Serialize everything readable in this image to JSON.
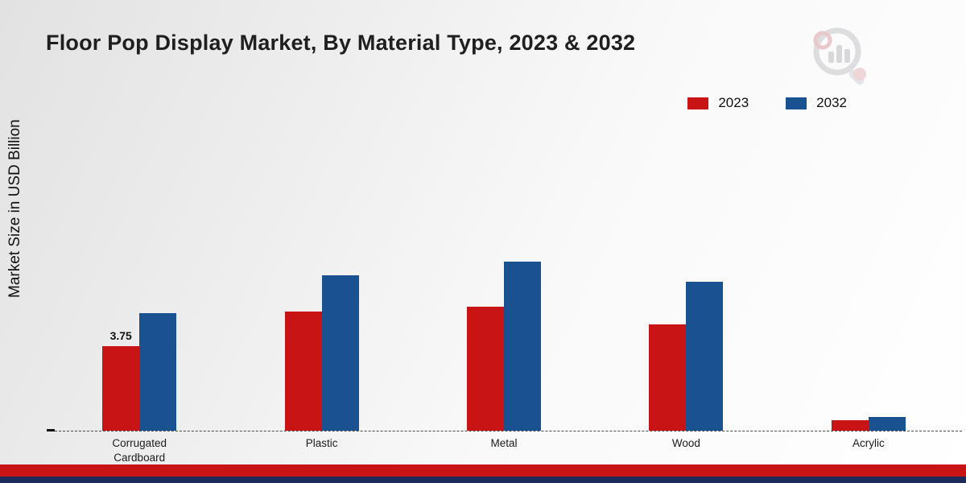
{
  "title": "Floor Pop Display Market, By Material Type, 2023 & 2032",
  "y_axis_label": "Market Size in USD Billion",
  "legend": [
    {
      "label": "2023",
      "color": "#c81414"
    },
    {
      "label": "2032",
      "color": "#1a5190"
    }
  ],
  "colors": {
    "series_2023": "#c81414",
    "series_2032": "#1a5190",
    "footer_red": "#c81414",
    "footer_navy": "#1d2b5a"
  },
  "chart_data": {
    "type": "bar",
    "title": "Floor Pop Display Market, By Material Type, 2023 & 2032",
    "ylabel": "Market Size in USD Billion",
    "xlabel": "",
    "categories": [
      "Corrugated Cardboard",
      "Plastic",
      "Metal",
      "Wood",
      "Acrylic"
    ],
    "series": [
      {
        "name": "2023",
        "color": "#c81414",
        "values": [
          3.75,
          5.3,
          5.5,
          4.7,
          0.45
        ]
      },
      {
        "name": "2032",
        "color": "#1a5190",
        "values": [
          5.2,
          6.9,
          7.5,
          6.6,
          0.6
        ]
      }
    ],
    "annotations": [
      {
        "series": 0,
        "category": 0,
        "text": "3.75"
      }
    ],
    "ylim": [
      0,
      12
    ],
    "grid": false,
    "legend_position": "top-right",
    "baseline_style": "dashed"
  }
}
